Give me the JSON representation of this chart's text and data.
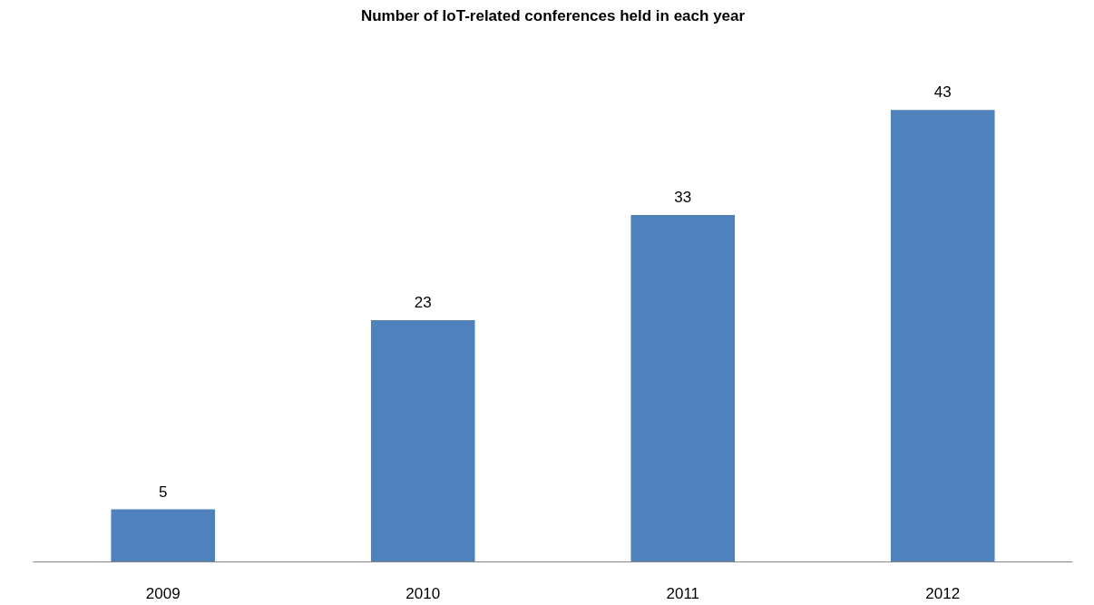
{
  "chart_data": {
    "type": "bar",
    "title": "Number of IoT-related conferences held in each year",
    "categories": [
      "2009",
      "2010",
      "2011",
      "2012"
    ],
    "values": [
      5,
      23,
      33,
      43
    ],
    "color": "#4f81bd",
    "data_labels": true
  }
}
